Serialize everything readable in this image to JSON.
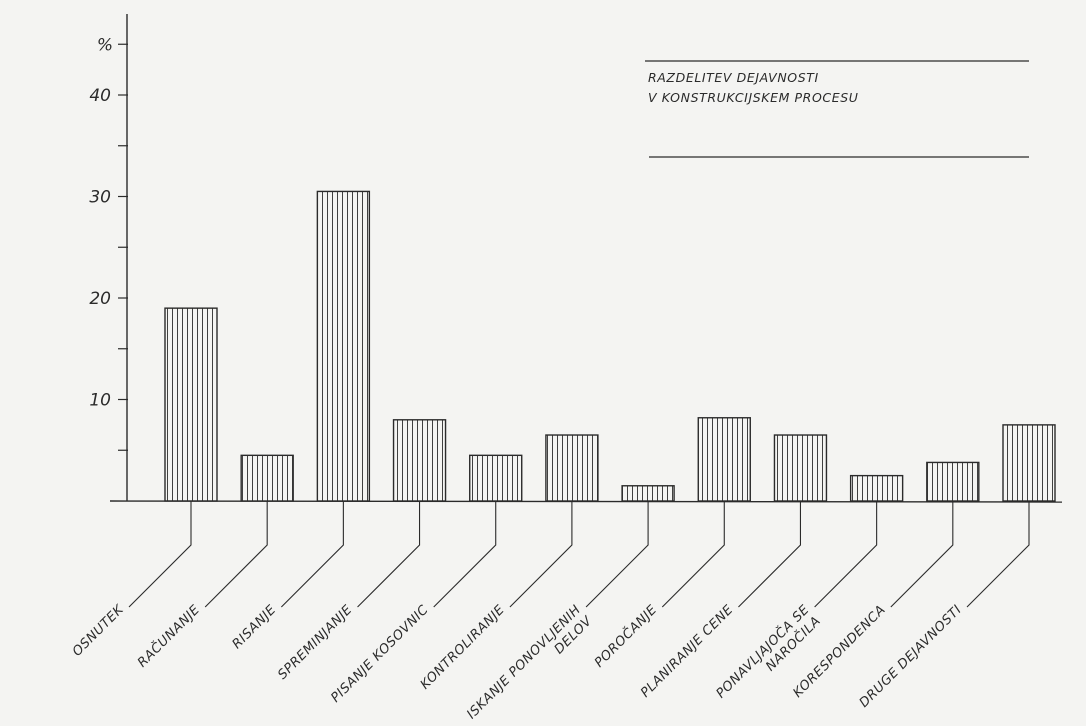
{
  "chart_data": {
    "type": "bar",
    "title_lines": [
      "RAZDELITEV DEJAVNOSTI",
      "V KONSTRUKCIJSKEM PROCESU"
    ],
    "ylabel": "%",
    "ylim": [
      0,
      45
    ],
    "yticks": [
      10,
      20,
      30,
      40
    ],
    "grid": false,
    "bar_fill": "vertical-hatch",
    "categories": [
      {
        "lines": [
          "OSNUTEK"
        ],
        "value": 19
      },
      {
        "lines": [
          "RAČUNANJE"
        ],
        "value": 4.5
      },
      {
        "lines": [
          "RISANJE"
        ],
        "value": 30.5
      },
      {
        "lines": [
          "SPREMINJANJE"
        ],
        "value": 8
      },
      {
        "lines": [
          "PISANJE KOSOVNIC"
        ],
        "value": 4.5
      },
      {
        "lines": [
          "KONTROLIRANJE"
        ],
        "value": 6.5
      },
      {
        "lines": [
          "ISKANJE PONOVLJENIH",
          "DELOV"
        ],
        "value": 1.5
      },
      {
        "lines": [
          "POROČANJE"
        ],
        "value": 8.2
      },
      {
        "lines": [
          "PLANIRANJE CENE"
        ],
        "value": 6.5
      },
      {
        "lines": [
          "PONAVLJAJOČA SE",
          "NAROČILA"
        ],
        "value": 2.5
      },
      {
        "lines": [
          "KORESPONDENCA"
        ],
        "value": 3.8
      },
      {
        "lines": [
          "DRUGE DEJAVNOSTI"
        ],
        "value": 7.5
      }
    ]
  },
  "colors": {
    "ink": "#2b2b2b",
    "paper": "#f4f4f2"
  }
}
